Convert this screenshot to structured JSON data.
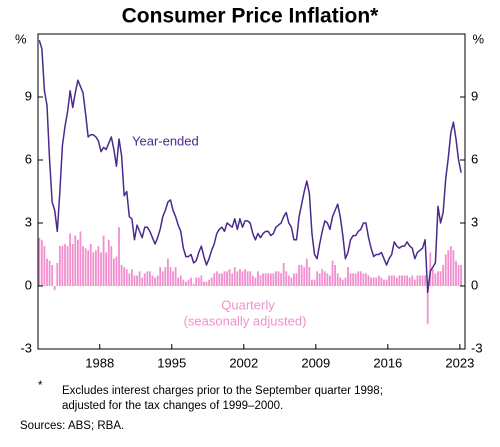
{
  "chart_data": {
    "type": "combo",
    "title": "Consumer Price Inflation*",
    "y_unit": "%",
    "xlim": [
      1982.5,
      2024
    ],
    "xticks": [
      {
        "value": 1988.5,
        "label": "1988"
      },
      {
        "value": 1995.5,
        "label": "1995"
      },
      {
        "value": 2002.5,
        "label": "2002"
      },
      {
        "value": 2009.5,
        "label": "2009"
      },
      {
        "value": 2016.5,
        "label": "2016"
      },
      {
        "value": 2023.5,
        "label": "2023"
      }
    ],
    "ylim": [
      -3,
      12
    ],
    "yticks": [
      -3,
      0,
      3,
      6,
      9
    ],
    "grid": false,
    "x": [
      1982.625,
      1982.875,
      1983.125,
      1983.375,
      1983.625,
      1983.875,
      1984.125,
      1984.375,
      1984.625,
      1984.875,
      1985.125,
      1985.375,
      1985.625,
      1985.875,
      1986.125,
      1986.375,
      1986.625,
      1986.875,
      1987.125,
      1987.375,
      1987.625,
      1987.875,
      1988.125,
      1988.375,
      1988.625,
      1988.875,
      1989.125,
      1989.375,
      1989.625,
      1989.875,
      1990.125,
      1990.375,
      1990.625,
      1990.875,
      1991.125,
      1991.375,
      1991.625,
      1991.875,
      1992.125,
      1992.375,
      1992.625,
      1992.875,
      1993.125,
      1993.375,
      1993.625,
      1993.875,
      1994.125,
      1994.375,
      1994.625,
      1994.875,
      1995.125,
      1995.375,
      1995.625,
      1995.875,
      1996.125,
      1996.375,
      1996.625,
      1996.875,
      1997.125,
      1997.375,
      1997.625,
      1997.875,
      1998.125,
      1998.375,
      1998.625,
      1998.875,
      1999.125,
      1999.375,
      1999.625,
      1999.875,
      2000.125,
      2000.375,
      2000.625,
      2000.875,
      2001.125,
      2001.375,
      2001.625,
      2001.875,
      2002.125,
      2002.375,
      2002.625,
      2002.875,
      2003.125,
      2003.375,
      2003.625,
      2003.875,
      2004.125,
      2004.375,
      2004.625,
      2004.875,
      2005.125,
      2005.375,
      2005.625,
      2005.875,
      2006.125,
      2006.375,
      2006.625,
      2006.875,
      2007.125,
      2007.375,
      2007.625,
      2007.875,
      2008.125,
      2008.375,
      2008.625,
      2008.875,
      2009.125,
      2009.375,
      2009.625,
      2009.875,
      2010.125,
      2010.375,
      2010.625,
      2010.875,
      2011.125,
      2011.375,
      2011.625,
      2011.875,
      2012.125,
      2012.375,
      2012.625,
      2012.875,
      2013.125,
      2013.375,
      2013.625,
      2013.875,
      2014.125,
      2014.375,
      2014.625,
      2014.875,
      2015.125,
      2015.375,
      2015.625,
      2015.875,
      2016.125,
      2016.375,
      2016.625,
      2016.875,
      2017.125,
      2017.375,
      2017.625,
      2017.875,
      2018.125,
      2018.375,
      2018.625,
      2018.875,
      2019.125,
      2019.375,
      2019.625,
      2019.875,
      2020.125,
      2020.375,
      2020.625,
      2020.875,
      2021.125,
      2021.375,
      2021.625,
      2021.875,
      2022.125,
      2022.375,
      2022.625,
      2022.875,
      2023.125,
      2023.375,
      2023.625
    ],
    "series": [
      {
        "name": "Year-ended",
        "type": "line",
        "color": "#4b2a8c",
        "values": [
          11.7,
          11.3,
          9.3,
          8.6,
          6.0,
          4.0,
          3.6,
          2.6,
          4.5,
          6.7,
          7.6,
          8.3,
          9.3,
          8.5,
          9.2,
          9.8,
          9.5,
          9.2,
          8.2,
          7.1,
          7.2,
          7.2,
          7.1,
          6.9,
          6.4,
          6.6,
          6.5,
          6.8,
          7.1,
          6.5,
          5.7,
          7.0,
          6.2,
          4.3,
          4.5,
          3.3,
          3.2,
          2.2,
          2.9,
          2.6,
          2.3,
          2.8,
          2.8,
          2.6,
          2.3,
          2.0,
          2.3,
          2.7,
          3.3,
          3.6,
          4.0,
          4.1,
          3.6,
          3.3,
          2.9,
          2.6,
          1.8,
          1.4,
          1.4,
          1.5,
          1.1,
          1.2,
          1.6,
          1.9,
          1.4,
          1.0,
          1.3,
          1.7,
          2.0,
          2.5,
          2.7,
          2.8,
          2.6,
          3.0,
          2.9,
          2.8,
          3.2,
          2.7,
          3.2,
          2.8,
          3.1,
          3.1,
          3.0,
          2.5,
          2.2,
          2.5,
          2.3,
          2.5,
          2.6,
          2.6,
          2.4,
          2.5,
          2.8,
          2.9,
          3.0,
          3.3,
          3.5,
          3.0,
          2.8,
          2.2,
          2.2,
          3.3,
          3.9,
          4.5,
          5.0,
          4.4,
          2.5,
          1.5,
          1.3,
          2.0,
          2.6,
          3.1,
          3.0,
          2.7,
          3.3,
          3.6,
          3.9,
          3.3,
          2.4,
          1.3,
          1.6,
          2.2,
          2.4,
          2.4,
          2.6,
          2.7,
          3.0,
          3.0,
          2.3,
          1.8,
          1.4,
          1.5,
          1.5,
          1.6,
          1.3,
          1.0,
          1.3,
          1.5,
          2.1,
          1.9,
          1.8,
          1.9,
          1.9,
          2.1,
          1.9,
          1.8,
          1.3,
          1.6,
          1.7,
          1.8,
          2.2,
          -0.3,
          0.7,
          0.9,
          1.1,
          3.8,
          3.0,
          3.5,
          5.1,
          6.1,
          7.3,
          7.8,
          7.0,
          6.0,
          5.4
        ]
      },
      {
        "name": "Quarterly",
        "note": "(seasonally adjusted)",
        "type": "bar",
        "color": "#f28fcf",
        "values": [
          2.3,
          2.2,
          1.9,
          1.3,
          1.2,
          1.0,
          -0.2,
          1.1,
          1.9,
          1.9,
          2.0,
          1.9,
          2.5,
          2.0,
          2.4,
          2.2,
          2.6,
          1.9,
          1.8,
          1.7,
          2.0,
          1.6,
          1.7,
          1.9,
          1.6,
          2.4,
          1.6,
          2.2,
          1.9,
          1.3,
          1.4,
          2.8,
          1.0,
          0.9,
          0.8,
          0.6,
          0.8,
          0.5,
          0.5,
          0.7,
          0.4,
          0.6,
          0.7,
          0.7,
          0.5,
          0.4,
          0.5,
          0.9,
          0.7,
          0.9,
          1.3,
          0.9,
          0.7,
          0.9,
          0.4,
          0.5,
          0.3,
          0.2,
          0.3,
          0.4,
          0.1,
          0.4,
          0.4,
          0.5,
          0.2,
          0.2,
          0.3,
          0.4,
          0.6,
          0.7,
          0.6,
          0.6,
          0.7,
          0.7,
          0.8,
          0.6,
          0.9,
          0.7,
          0.8,
          0.7,
          0.8,
          0.7,
          0.7,
          0.5,
          0.4,
          0.7,
          0.5,
          0.6,
          0.6,
          0.6,
          0.6,
          0.6,
          0.7,
          0.7,
          0.6,
          1.1,
          0.7,
          0.5,
          0.4,
          0.6,
          0.6,
          1.0,
          1.0,
          0.9,
          1.3,
          0.9,
          0.3,
          0.3,
          0.7,
          0.6,
          0.8,
          0.7,
          0.6,
          0.5,
          1.2,
          1.0,
          0.6,
          0.4,
          0.3,
          0.4,
          0.9,
          0.6,
          0.6,
          0.6,
          0.7,
          0.7,
          0.6,
          0.6,
          0.5,
          0.4,
          0.4,
          0.4,
          0.5,
          0.4,
          0.3,
          0.3,
          0.5,
          0.5,
          0.5,
          0.4,
          0.5,
          0.5,
          0.5,
          0.5,
          0.4,
          0.5,
          0.3,
          0.5,
          0.5,
          0.5,
          0.5,
          -1.8,
          1.6,
          0.8,
          0.6,
          0.7,
          0.7,
          1.0,
          1.5,
          1.7,
          1.9,
          1.7,
          1.2,
          1.0,
          1.0
        ]
      }
    ],
    "footnote_marker": "*",
    "footnote": [
      "Excludes interest charges prior to the September quarter 1998;",
      "adjusted for the tax changes of 1999–2000."
    ],
    "source": "Sources: ABS; RBA."
  }
}
